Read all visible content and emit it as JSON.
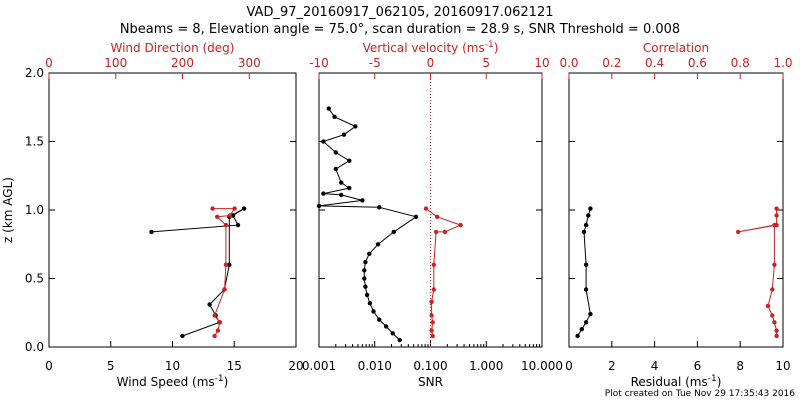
{
  "title_line1": "VAD_97_20160917_062105, 20160917.062121",
  "title_line2": "Nbeams = 8, Elevation angle = 75.0°, scan duration = 28.9 s, SNR Threshold = 0.008",
  "footer": "Plot created on Tue Nov 29 17:35:43 2016",
  "colors": {
    "black": "#000000",
    "red": "#cc2222"
  },
  "chart_data": [
    {
      "type": "line",
      "ylabel": "z (km AGL)",
      "ylim": [
        0,
        2
      ],
      "yticks": [
        "0.0",
        "0.5",
        "1.0",
        "1.5",
        "2.0"
      ],
      "bottom_axis": {
        "label": "Wind Speed (ms",
        "label_sup": "-1",
        "label_end": ")",
        "lim": [
          0,
          20
        ],
        "ticks": [
          "0",
          "5",
          "10",
          "15",
          "20"
        ]
      },
      "top_axis": {
        "label": "Wind Direction (deg)",
        "lim": [
          0,
          370
        ],
        "ticks": [
          "0",
          "100",
          "200",
          "300"
        ]
      },
      "series": [
        {
          "axis": "bottom",
          "color": "#000000",
          "x": [
            10.8,
            13.8,
            13.5,
            13.0,
            14.2,
            14.6,
            14.6,
            15.8,
            14.9,
            15.3,
            8.3
          ],
          "y": [
            0.08,
            0.18,
            0.23,
            0.31,
            0.42,
            0.6,
            0.95,
            1.01,
            0.96,
            0.89,
            0.84
          ]
        },
        {
          "axis": "top",
          "color": "#cc2222",
          "x": [
            248,
            253,
            256,
            248,
            263,
            265,
            265,
            252,
            271,
            278,
            245
          ],
          "y": [
            0.08,
            0.12,
            0.18,
            0.23,
            0.42,
            0.6,
            0.89,
            0.95,
            0.96,
            1.01,
            1.01
          ]
        }
      ]
    },
    {
      "type": "line",
      "xscale": "log",
      "bottom_axis": {
        "label": "SNR",
        "lim": [
          0.001,
          10
        ],
        "ticks": [
          "0.001",
          "0.010",
          "0.100",
          "1.000",
          "10.000"
        ]
      },
      "top_axis": {
        "label": "Vertical velocity (ms",
        "label_sup": "-1",
        "label_end": ")",
        "lim": [
          -10,
          10
        ],
        "ticks": [
          "-10",
          "-5",
          "0",
          "5",
          "10"
        ],
        "zero_line": "dotted"
      },
      "series": [
        {
          "axis": "bottom",
          "color": "#000000",
          "x": [
            0.028,
            0.021,
            0.016,
            0.012,
            0.0095,
            0.0082,
            0.0073,
            0.0068,
            0.0065,
            0.0065,
            0.0068,
            0.008,
            0.0115,
            0.022,
            0.055,
            0.012,
            0.001,
            0.006,
            0.0025,
            0.0012,
            0.0035,
            0.0025,
            0.002,
            0.0035,
            0.002,
            0.0012,
            0.0028,
            0.0045,
            0.0019,
            0.0015
          ],
          "y": [
            0.05,
            0.1,
            0.15,
            0.2,
            0.26,
            0.32,
            0.38,
            0.44,
            0.5,
            0.56,
            0.62,
            0.68,
            0.75,
            0.84,
            0.95,
            1.02,
            1.03,
            1.07,
            1.11,
            1.12,
            1.16,
            1.2,
            1.3,
            1.36,
            1.42,
            1.5,
            1.55,
            1.61,
            1.68,
            1.74
          ]
        },
        {
          "axis": "top",
          "color": "#cc2222",
          "x": [
            0.2,
            0.1,
            0.2,
            0.1,
            0.1,
            0.3,
            0.3,
            0.5,
            1.3,
            2.7,
            0.6,
            -0.4
          ],
          "y": [
            0.08,
            0.12,
            0.18,
            0.23,
            0.33,
            0.42,
            0.6,
            0.84,
            0.84,
            0.89,
            0.95,
            1.01
          ]
        }
      ]
    },
    {
      "type": "line",
      "bottom_axis": {
        "label": "Residual (ms",
        "label_sup": "-1",
        "label_end": ")",
        "lim": [
          0,
          10
        ],
        "ticks": [
          "0",
          "2",
          "4",
          "6",
          "8",
          "10"
        ]
      },
      "top_axis": {
        "label": "Correlation",
        "lim": [
          0,
          1
        ],
        "ticks": [
          "0.0",
          "0.2",
          "0.4",
          "0.6",
          "0.8",
          "1.0"
        ]
      },
      "series": [
        {
          "axis": "bottom",
          "color": "#000000",
          "x": [
            0.4,
            0.6,
            0.8,
            1.0,
            0.8,
            0.8,
            0.7,
            0.8,
            0.9,
            1.0
          ],
          "y": [
            0.08,
            0.13,
            0.18,
            0.24,
            0.42,
            0.6,
            0.84,
            0.89,
            0.96,
            1.01
          ]
        },
        {
          "axis": "top",
          "color": "#cc2222",
          "x": [
            0.97,
            0.97,
            0.96,
            0.95,
            0.93,
            0.95,
            0.96,
            0.96,
            0.79,
            0.97,
            0.97,
            0.97
          ],
          "y": [
            0.08,
            0.12,
            0.18,
            0.23,
            0.3,
            0.42,
            0.6,
            0.89,
            0.84,
            0.89,
            0.96,
            1.01
          ]
        }
      ]
    }
  ]
}
